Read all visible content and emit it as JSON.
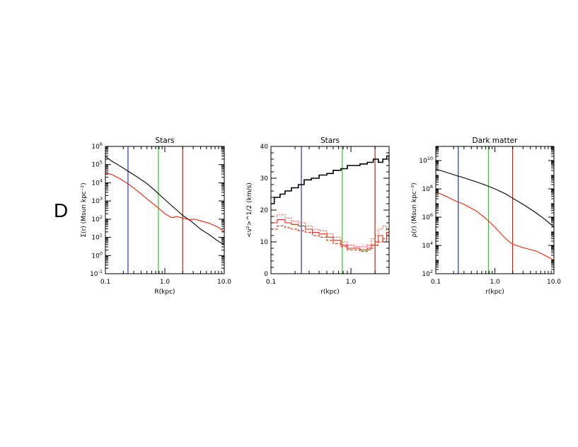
{
  "panel_label": "D",
  "chart_data": [
    {
      "type": "line",
      "title": "Stars",
      "xlabel": "R(kpc)",
      "ylabel": "Σ(r) (Msun kpc⁻²)",
      "xscale": "log",
      "yscale": "log",
      "xlim": [
        0.1,
        10.0
      ],
      "ylim": [
        0.1,
        1000000
      ],
      "x_ticks": [
        {
          "value": 0.1,
          "label": "0.1"
        },
        {
          "value": 1.0,
          "label": "1.0"
        },
        {
          "value": 10.0,
          "label": "10.0"
        }
      ],
      "y_ticks": [
        {
          "value": 0.1,
          "base": "10",
          "exp": "-1"
        },
        {
          "value": 1,
          "base": "10",
          "exp": "0"
        },
        {
          "value": 10,
          "base": "10",
          "exp": "1"
        },
        {
          "value": 100,
          "base": "10",
          "exp": "2"
        },
        {
          "value": 1000,
          "base": "10",
          "exp": "3"
        },
        {
          "value": 10000,
          "base": "10",
          "exp": "4"
        },
        {
          "value": 100000,
          "base": "10",
          "exp": "5"
        },
        {
          "value": 1000000,
          "base": "10",
          "exp": "6"
        }
      ],
      "vlines": [
        {
          "x": 0.24,
          "color": "#2233cc"
        },
        {
          "x": 0.78,
          "color": "#22cc22"
        },
        {
          "x": 2.0,
          "color": "#cc2200"
        }
      ],
      "series": [
        {
          "color": "#000000",
          "style": "line",
          "x": [
            0.1,
            0.13,
            0.18,
            0.25,
            0.35,
            0.5,
            0.7,
            1.0,
            1.4,
            2.0,
            2.8,
            4.0,
            5.6,
            8.0,
            10.0
          ],
          "y": [
            280000,
            150000,
            80000,
            40000,
            20000,
            9000,
            3500,
            1200,
            450,
            160,
            75,
            28,
            14,
            6,
            4
          ]
        },
        {
          "color": "#ee2200",
          "style": "line",
          "x": [
            0.1,
            0.13,
            0.18,
            0.25,
            0.35,
            0.5,
            0.7,
            1.0,
            1.3,
            1.6,
            2.0,
            2.5,
            3.2,
            4.0,
            5.6,
            8.0,
            10.0
          ],
          "y": [
            35000,
            28000,
            16000,
            8000,
            3500,
            1300,
            550,
            200,
            120,
            140,
            115,
            95,
            100,
            80,
            60,
            35,
            20
          ]
        }
      ]
    },
    {
      "type": "line",
      "title": "Stars",
      "xlabel": "r(kpc)",
      "ylabel": "<v²>^1/2 (km/s)",
      "xscale": "log",
      "yscale": "linear",
      "xlim": [
        0.1,
        3.0
      ],
      "ylim": [
        0,
        40
      ],
      "x_ticks": [
        {
          "value": 0.1,
          "label": "0.1"
        },
        {
          "value": 1.0,
          "label": "1.0"
        }
      ],
      "y_ticks": [
        {
          "value": 0,
          "label": "0"
        },
        {
          "value": 10,
          "label": "10"
        },
        {
          "value": 20,
          "label": "20"
        },
        {
          "value": 30,
          "label": "30"
        },
        {
          "value": 40,
          "label": "40"
        }
      ],
      "vlines": [
        {
          "x": 0.24,
          "color": "#2233cc"
        },
        {
          "x": 0.78,
          "color": "#22cc22"
        },
        {
          "x": 2.0,
          "color": "#cc2200"
        }
      ],
      "series": [
        {
          "color": "#000000",
          "style": "step",
          "x": [
            0.1,
            0.11,
            0.13,
            0.15,
            0.18,
            0.22,
            0.26,
            0.32,
            0.4,
            0.5,
            0.6,
            0.75,
            0.9,
            1.1,
            1.3,
            1.6,
            1.9,
            2.2,
            2.5,
            2.8,
            3.0
          ],
          "y": [
            22,
            24,
            25,
            26,
            27,
            28,
            29.5,
            30,
            31,
            31.5,
            32.5,
            33,
            34,
            34,
            34.5,
            35,
            36,
            35,
            36,
            37,
            35
          ]
        },
        {
          "color": "#ee2200",
          "style": "step",
          "x": [
            0.1,
            0.12,
            0.15,
            0.18,
            0.22,
            0.27,
            0.33,
            0.4,
            0.5,
            0.6,
            0.75,
            0.9,
            1.1,
            1.3,
            1.6,
            1.8,
            2.0,
            2.2,
            2.5,
            2.8,
            3.0
          ],
          "y": [
            16,
            17,
            16,
            15.5,
            15,
            14,
            13,
            12.5,
            11.5,
            10.5,
            9,
            8,
            8,
            7.5,
            8,
            9,
            10,
            12,
            10,
            13,
            11
          ]
        },
        {
          "color": "#ee2200",
          "style": "dotted",
          "x": [
            0.1,
            0.12,
            0.15,
            0.18,
            0.22,
            0.27,
            0.33,
            0.4,
            0.5,
            0.6,
            0.75,
            0.9,
            1.1,
            1.3,
            1.6,
            1.8,
            2.0,
            2.2,
            2.5,
            2.8,
            3.0
          ],
          "y": [
            18,
            18.5,
            17.5,
            16.5,
            16,
            15,
            14,
            13.5,
            12.5,
            11.5,
            10,
            9,
            8.5,
            8.5,
            9,
            11,
            12,
            14,
            15,
            13,
            14
          ]
        },
        {
          "color": "#ee2200",
          "style": "dashed",
          "x": [
            0.1,
            0.12,
            0.15,
            0.18,
            0.22,
            0.27,
            0.33,
            0.4,
            0.5,
            0.6,
            0.75,
            0.9,
            1.1,
            1.3,
            1.6,
            1.8,
            2.0,
            2.2,
            2.5,
            2.8,
            3.0
          ],
          "y": [
            14,
            15,
            14.5,
            14,
            13.5,
            13,
            12,
            11.5,
            10.5,
            9.5,
            8.5,
            7.5,
            7.5,
            7,
            7.5,
            8,
            9,
            10,
            11,
            12,
            10
          ]
        }
      ]
    },
    {
      "type": "line",
      "title": "Dark matter",
      "xlabel": "r(kpc)",
      "ylabel": "ρ(r) (Msun kpc⁻³)",
      "xscale": "log",
      "yscale": "log",
      "xlim": [
        0.1,
        10.0
      ],
      "ylim": [
        100,
        100000000000
      ],
      "x_ticks": [
        {
          "value": 0.1,
          "label": "0.1"
        },
        {
          "value": 1.0,
          "label": "1.0"
        },
        {
          "value": 10.0,
          "label": "10.0"
        }
      ],
      "y_ticks": [
        {
          "value": 100,
          "base": "10",
          "exp": "2"
        },
        {
          "value": 10000,
          "base": "10",
          "exp": "4"
        },
        {
          "value": 1000000,
          "base": "10",
          "exp": "6"
        },
        {
          "value": 100000000,
          "base": "10",
          "exp": "8"
        },
        {
          "value": 10000000000,
          "base": "10",
          "exp": "10"
        }
      ],
      "vlines": [
        {
          "x": 0.24,
          "color": "#2233cc"
        },
        {
          "x": 0.78,
          "color": "#22cc22"
        },
        {
          "x": 2.0,
          "color": "#cc2200"
        }
      ],
      "series": [
        {
          "color": "#000000",
          "style": "line",
          "x": [
            0.1,
            0.15,
            0.2,
            0.3,
            0.5,
            0.7,
            1.0,
            1.5,
            2.0,
            3.0,
            5.0,
            7.0,
            10.0
          ],
          "y": [
            2500000000,
            1500000000,
            1000000000,
            600000000,
            300000000,
            180000000,
            100000000,
            45000000,
            22000000,
            8000000,
            2000000,
            700000,
            200000
          ]
        },
        {
          "color": "#ee2200",
          "style": "line",
          "x": [
            0.1,
            0.15,
            0.2,
            0.3,
            0.5,
            0.7,
            1.0,
            1.3,
            1.6,
            2.0,
            2.5,
            3.0,
            5.0,
            7.0,
            10.0
          ],
          "y": [
            60000000,
            30000000,
            16000000,
            8000000,
            2500000,
            800000,
            200000,
            60000,
            25000,
            12000,
            9000,
            7000,
            4000,
            2000,
            900
          ]
        }
      ]
    }
  ]
}
